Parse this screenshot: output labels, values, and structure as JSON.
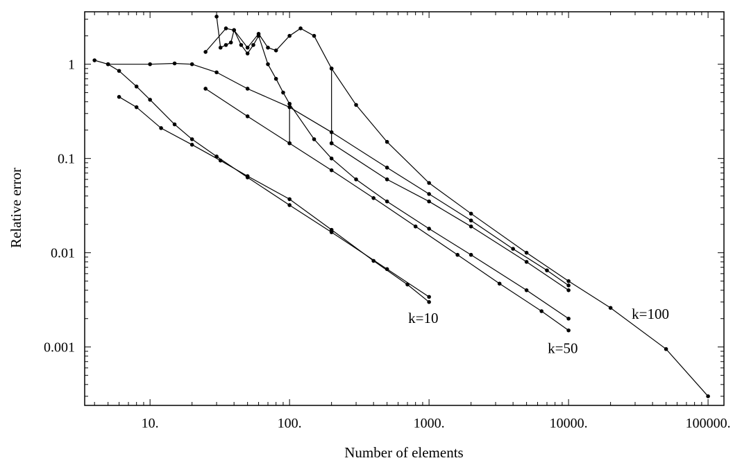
{
  "chart_data": {
    "type": "line",
    "title": "",
    "xlabel": "Number of elements",
    "ylabel": "Relative error",
    "xscale": "log",
    "yscale": "log",
    "xlim": [
      3.4,
      130000
    ],
    "ylim": [
      0.00024,
      3.6
    ],
    "x_ticks": [
      {
        "value": 10,
        "label": "10."
      },
      {
        "value": 100,
        "label": "100."
      },
      {
        "value": 1000,
        "label": "1000."
      },
      {
        "value": 10000,
        "label": "10000."
      },
      {
        "value": 100000,
        "label": "100000."
      }
    ],
    "y_ticks": [
      {
        "value": 1,
        "label": "1"
      },
      {
        "value": 0.1,
        "label": "0.1"
      },
      {
        "value": 0.01,
        "label": "0.01"
      },
      {
        "value": 0.001,
        "label": "0.001"
      }
    ],
    "grid": false,
    "legend": "none",
    "series": [
      {
        "points": [
          [
            6,
            0.45
          ],
          [
            8,
            0.35
          ],
          [
            12,
            0.21
          ],
          [
            20,
            0.14
          ],
          [
            32,
            0.095
          ],
          [
            50,
            0.065
          ],
          [
            100,
            0.037
          ],
          [
            200,
            0.0175
          ],
          [
            400,
            0.0082
          ],
          [
            700,
            0.0046
          ],
          [
            1000,
            0.003
          ]
        ],
        "label": "k=10",
        "label_at": [
          1000,
          0.002
        ]
      },
      {
        "points": [
          [
            4,
            1.1
          ],
          [
            5,
            1.0
          ],
          [
            6,
            0.85
          ],
          [
            8,
            0.58
          ],
          [
            10,
            0.42
          ],
          [
            15,
            0.23
          ],
          [
            20,
            0.16
          ],
          [
            30,
            0.105
          ],
          [
            50,
            0.063
          ],
          [
            100,
            0.032
          ],
          [
            200,
            0.0165
          ],
          [
            500,
            0.0067
          ],
          [
            1000,
            0.0034
          ]
        ],
        "label": "",
        "label_at": null
      },
      {
        "points": [
          [
            5,
            1.0
          ],
          [
            10,
            1.0
          ],
          [
            15,
            1.02
          ],
          [
            20,
            1.0
          ],
          [
            30,
            0.82
          ],
          [
            50,
            0.55
          ],
          [
            100,
            0.35
          ],
          [
            200,
            0.19
          ],
          [
            500,
            0.08
          ],
          [
            1000,
            0.042
          ],
          [
            2000,
            0.022
          ],
          [
            4000,
            0.011
          ],
          [
            7000,
            0.0065
          ],
          [
            10000,
            0.0045
          ]
        ],
        "label": "",
        "label_at": null
      },
      {
        "points": [
          [
            25,
            0.55
          ],
          [
            50,
            0.28
          ],
          [
            100,
            0.145
          ],
          [
            200,
            0.075
          ],
          [
            400,
            0.038
          ],
          [
            800,
            0.019
          ],
          [
            1600,
            0.0095
          ],
          [
            3200,
            0.0047
          ],
          [
            6400,
            0.0024
          ],
          [
            10000,
            0.0015
          ]
        ],
        "label": "k=50",
        "label_at": [
          10000,
          0.00095
        ]
      },
      {
        "points": [
          [
            30,
            3.2
          ],
          [
            32,
            1.5
          ],
          [
            35,
            1.6
          ],
          [
            38,
            1.7
          ],
          [
            40,
            2.3
          ],
          [
            45,
            1.6
          ],
          [
            50,
            1.3
          ],
          [
            55,
            1.6
          ],
          [
            60,
            2.0
          ],
          [
            70,
            1.0
          ],
          [
            80,
            0.7
          ],
          [
            90,
            0.5
          ],
          [
            100,
            0.38
          ],
          [
            150,
            0.16
          ],
          [
            200,
            0.1
          ],
          [
            300,
            0.06
          ],
          [
            500,
            0.035
          ],
          [
            1000,
            0.018
          ],
          [
            2000,
            0.0095
          ],
          [
            5000,
            0.004
          ],
          [
            10000,
            0.002
          ]
        ],
        "label": "",
        "label_at": null
      },
      {
        "points": [
          [
            25,
            1.35
          ],
          [
            35,
            2.4
          ],
          [
            40,
            2.3
          ],
          [
            50,
            1.5
          ],
          [
            60,
            2.1
          ],
          [
            70,
            1.5
          ],
          [
            80,
            1.4
          ],
          [
            100,
            2.0
          ],
          [
            120,
            2.4
          ],
          [
            150,
            2.0
          ],
          [
            200,
            0.9
          ],
          [
            300,
            0.37
          ],
          [
            500,
            0.15
          ],
          [
            1000,
            0.055
          ],
          [
            2000,
            0.026
          ],
          [
            5000,
            0.01
          ],
          [
            10000,
            0.005
          ],
          [
            20000,
            0.0026
          ],
          [
            50000,
            0.00095
          ],
          [
            100000,
            0.0003
          ]
        ],
        "label": "k=100",
        "label_at": [
          40000,
          0.0022
        ]
      },
      {
        "points": [
          [
            100,
            0.38
          ],
          [
            100,
            0.145
          ],
          [
            200,
            0.9
          ],
          [
            200,
            0.145
          ]
        ],
        "segments": true,
        "label": "",
        "label_at": null
      },
      {
        "points": [
          [
            200,
            0.145
          ],
          [
            500,
            0.06
          ],
          [
            1000,
            0.035
          ],
          [
            2000,
            0.019
          ],
          [
            5000,
            0.008
          ],
          [
            10000,
            0.004
          ]
        ],
        "label": "",
        "label_at": null
      }
    ]
  }
}
